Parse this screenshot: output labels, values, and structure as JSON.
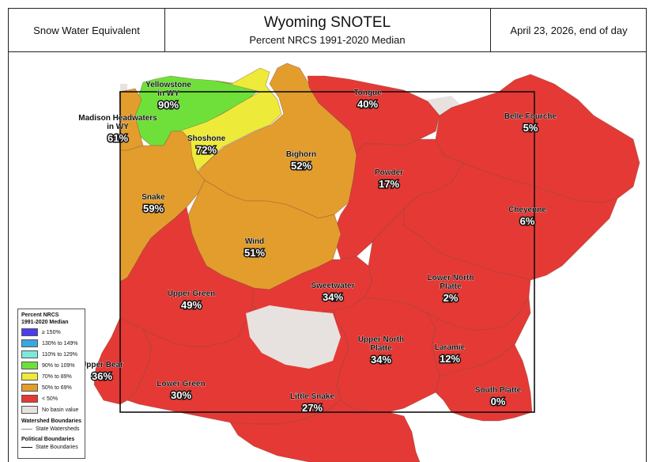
{
  "header": {
    "left": "Snow Water Equivalent",
    "title": "Wyoming SNOTEL",
    "subtitle": "Percent NRCS 1991-2020 Median",
    "right": "April 23, 2026, end of day"
  },
  "colors": {
    "ge150": "#4b3cf0",
    "c130_149": "#39a7e0",
    "c110_129": "#7fe8d8",
    "c90_109": "#6fe03a",
    "c70_89": "#eeea3a",
    "c50_69": "#e39d2d",
    "lt50": "#e53935",
    "no_value": "#e7e2e0"
  },
  "basins": [
    {
      "name": "Yellowstone\nin WY",
      "pct": "90%",
      "cat": "c90_109"
    },
    {
      "name": "Madison Headwaters\nin WY",
      "pct": "61%",
      "cat": "c50_69"
    },
    {
      "name": "Shoshone",
      "pct": "72%",
      "cat": "c70_89"
    },
    {
      "name": "Bighorn",
      "pct": "52%",
      "cat": "c50_69"
    },
    {
      "name": "Tongue",
      "pct": "40%",
      "cat": "lt50"
    },
    {
      "name": "Belle Fourche",
      "pct": "5%",
      "cat": "lt50"
    },
    {
      "name": "Powder",
      "pct": "17%",
      "cat": "lt50"
    },
    {
      "name": "Cheyenne",
      "pct": "6%",
      "cat": "lt50"
    },
    {
      "name": "Snake",
      "pct": "59%",
      "cat": "c50_69"
    },
    {
      "name": "Wind",
      "pct": "51%",
      "cat": "c50_69"
    },
    {
      "name": "Upper Green",
      "pct": "49%",
      "cat": "lt50"
    },
    {
      "name": "Sweetwater",
      "pct": "34%",
      "cat": "lt50"
    },
    {
      "name": "Lower North\nPlatte",
      "pct": "2%",
      "cat": "lt50"
    },
    {
      "name": "Upper North\nPlatte",
      "pct": "34%",
      "cat": "lt50"
    },
    {
      "name": "Laramie",
      "pct": "12%",
      "cat": "lt50"
    },
    {
      "name": "Upper Bear",
      "pct": "36%",
      "cat": "lt50"
    },
    {
      "name": "Lower Green",
      "pct": "30%",
      "cat": "lt50"
    },
    {
      "name": "Little Snake",
      "pct": "27%",
      "cat": "lt50"
    },
    {
      "name": "South Platte",
      "pct": "0%",
      "cat": "lt50"
    }
  ],
  "legend": {
    "title1": "Percent NRCS",
    "title2": "1991-2020 Median",
    "items": [
      {
        "label": "≥ 150%",
        "cat": "ge150"
      },
      {
        "label": "130% to 149%",
        "cat": "c130_149"
      },
      {
        "label": "110% to 129%",
        "cat": "c110_129"
      },
      {
        "label": "90% to 109%",
        "cat": "c90_109"
      },
      {
        "label": "70% to 89%",
        "cat": "c70_89"
      },
      {
        "label": "50% to 69%",
        "cat": "c50_69"
      },
      {
        "label": "< 50%",
        "cat": "lt50"
      },
      {
        "label": "No basin value",
        "cat": "no_value"
      }
    ],
    "watershed_title": "Watershed Boundaries",
    "watershed_item": "State Watersheds",
    "political_title": "Political Boundaries",
    "political_item": "State Boundaries"
  }
}
